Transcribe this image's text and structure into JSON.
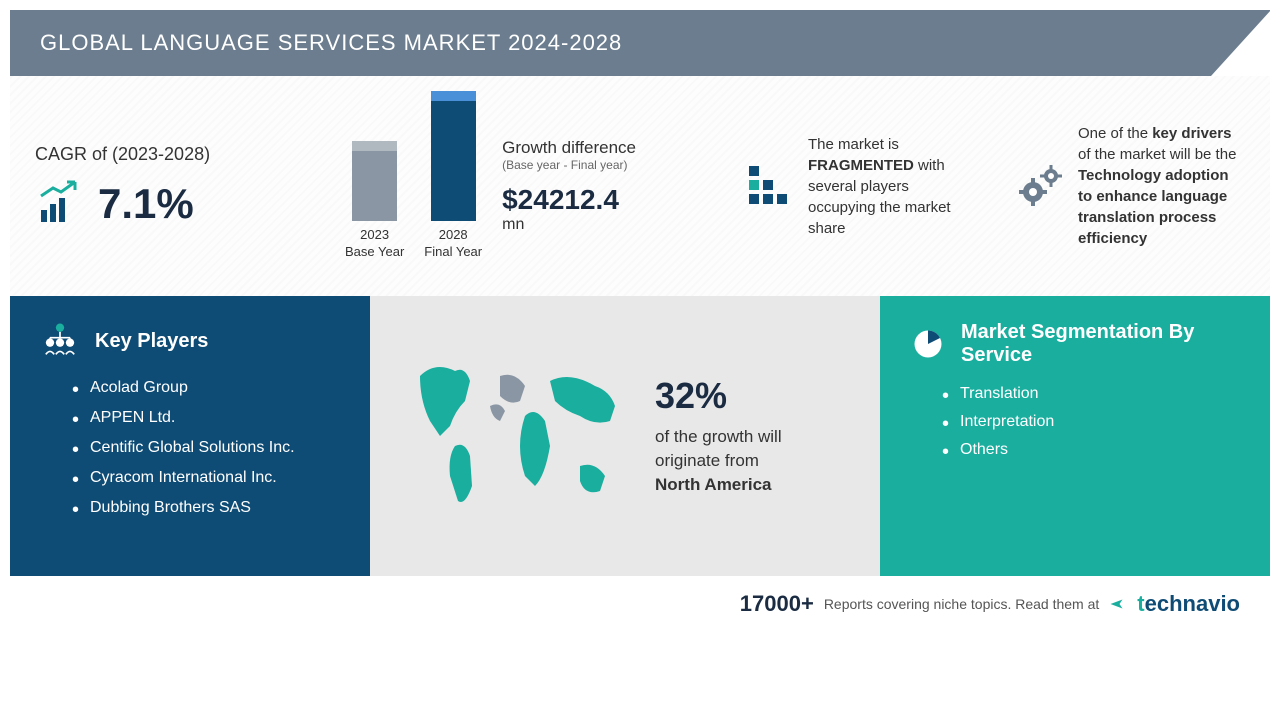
{
  "header": {
    "title": "GLOBAL LANGUAGE SERVICES MARKET 2024-2028"
  },
  "cagr": {
    "label": "CAGR of (2023-2028)",
    "value": "7.1%",
    "icon_color": "#1aae9f"
  },
  "growth": {
    "title": "Growth difference",
    "subtitle": "(Base year - Final year)",
    "value": "$24212.4",
    "unit": "mn",
    "bars": [
      {
        "label_line1": "2023",
        "label_line2": "Base Year",
        "height": 80,
        "color": "#8a96a3",
        "cap_color": "#b0b8c0"
      },
      {
        "label_line1": "2028",
        "label_line2": "Final Year",
        "height": 130,
        "color": "#0f4c75",
        "cap_color": "#4a90d9"
      }
    ],
    "dash_color": "#4a90d9"
  },
  "fragmented": {
    "prefix": "The market is ",
    "highlight": "FRAGMENTED",
    "suffix": " with several players occupying the market share",
    "icon_color": "#0f4c75"
  },
  "driver": {
    "prefix": "One of the ",
    "bold1": "key drivers",
    "mid": " of the market will be the ",
    "bold2": "Technology adoption to enhance language translation process efficiency",
    "icon_color": "#6b7d8e"
  },
  "players": {
    "title": "Key Players",
    "list": [
      "Acolad Group",
      "APPEN Ltd.",
      "Centific Global Solutions Inc.",
      "Cyracom International Inc.",
      "Dubbing Brothers SAS"
    ],
    "bg_color": "#0f4c75"
  },
  "region": {
    "percent": "32%",
    "line1": "of the growth will",
    "line2": "originate from",
    "bold": "North America",
    "map_color": "#1aae9f",
    "map_alt": "#8a96a3",
    "bg_color": "#e8e8e8"
  },
  "segmentation": {
    "title": "Market Segmentation By Service",
    "list": [
      "Translation",
      "Interpretation",
      "Others"
    ],
    "bg_color": "#1aae9f"
  },
  "footer": {
    "count": "17000+",
    "text": "Reports covering niche topics. Read them at",
    "logo_prefix": "t",
    "logo_rest": "echnavio"
  }
}
